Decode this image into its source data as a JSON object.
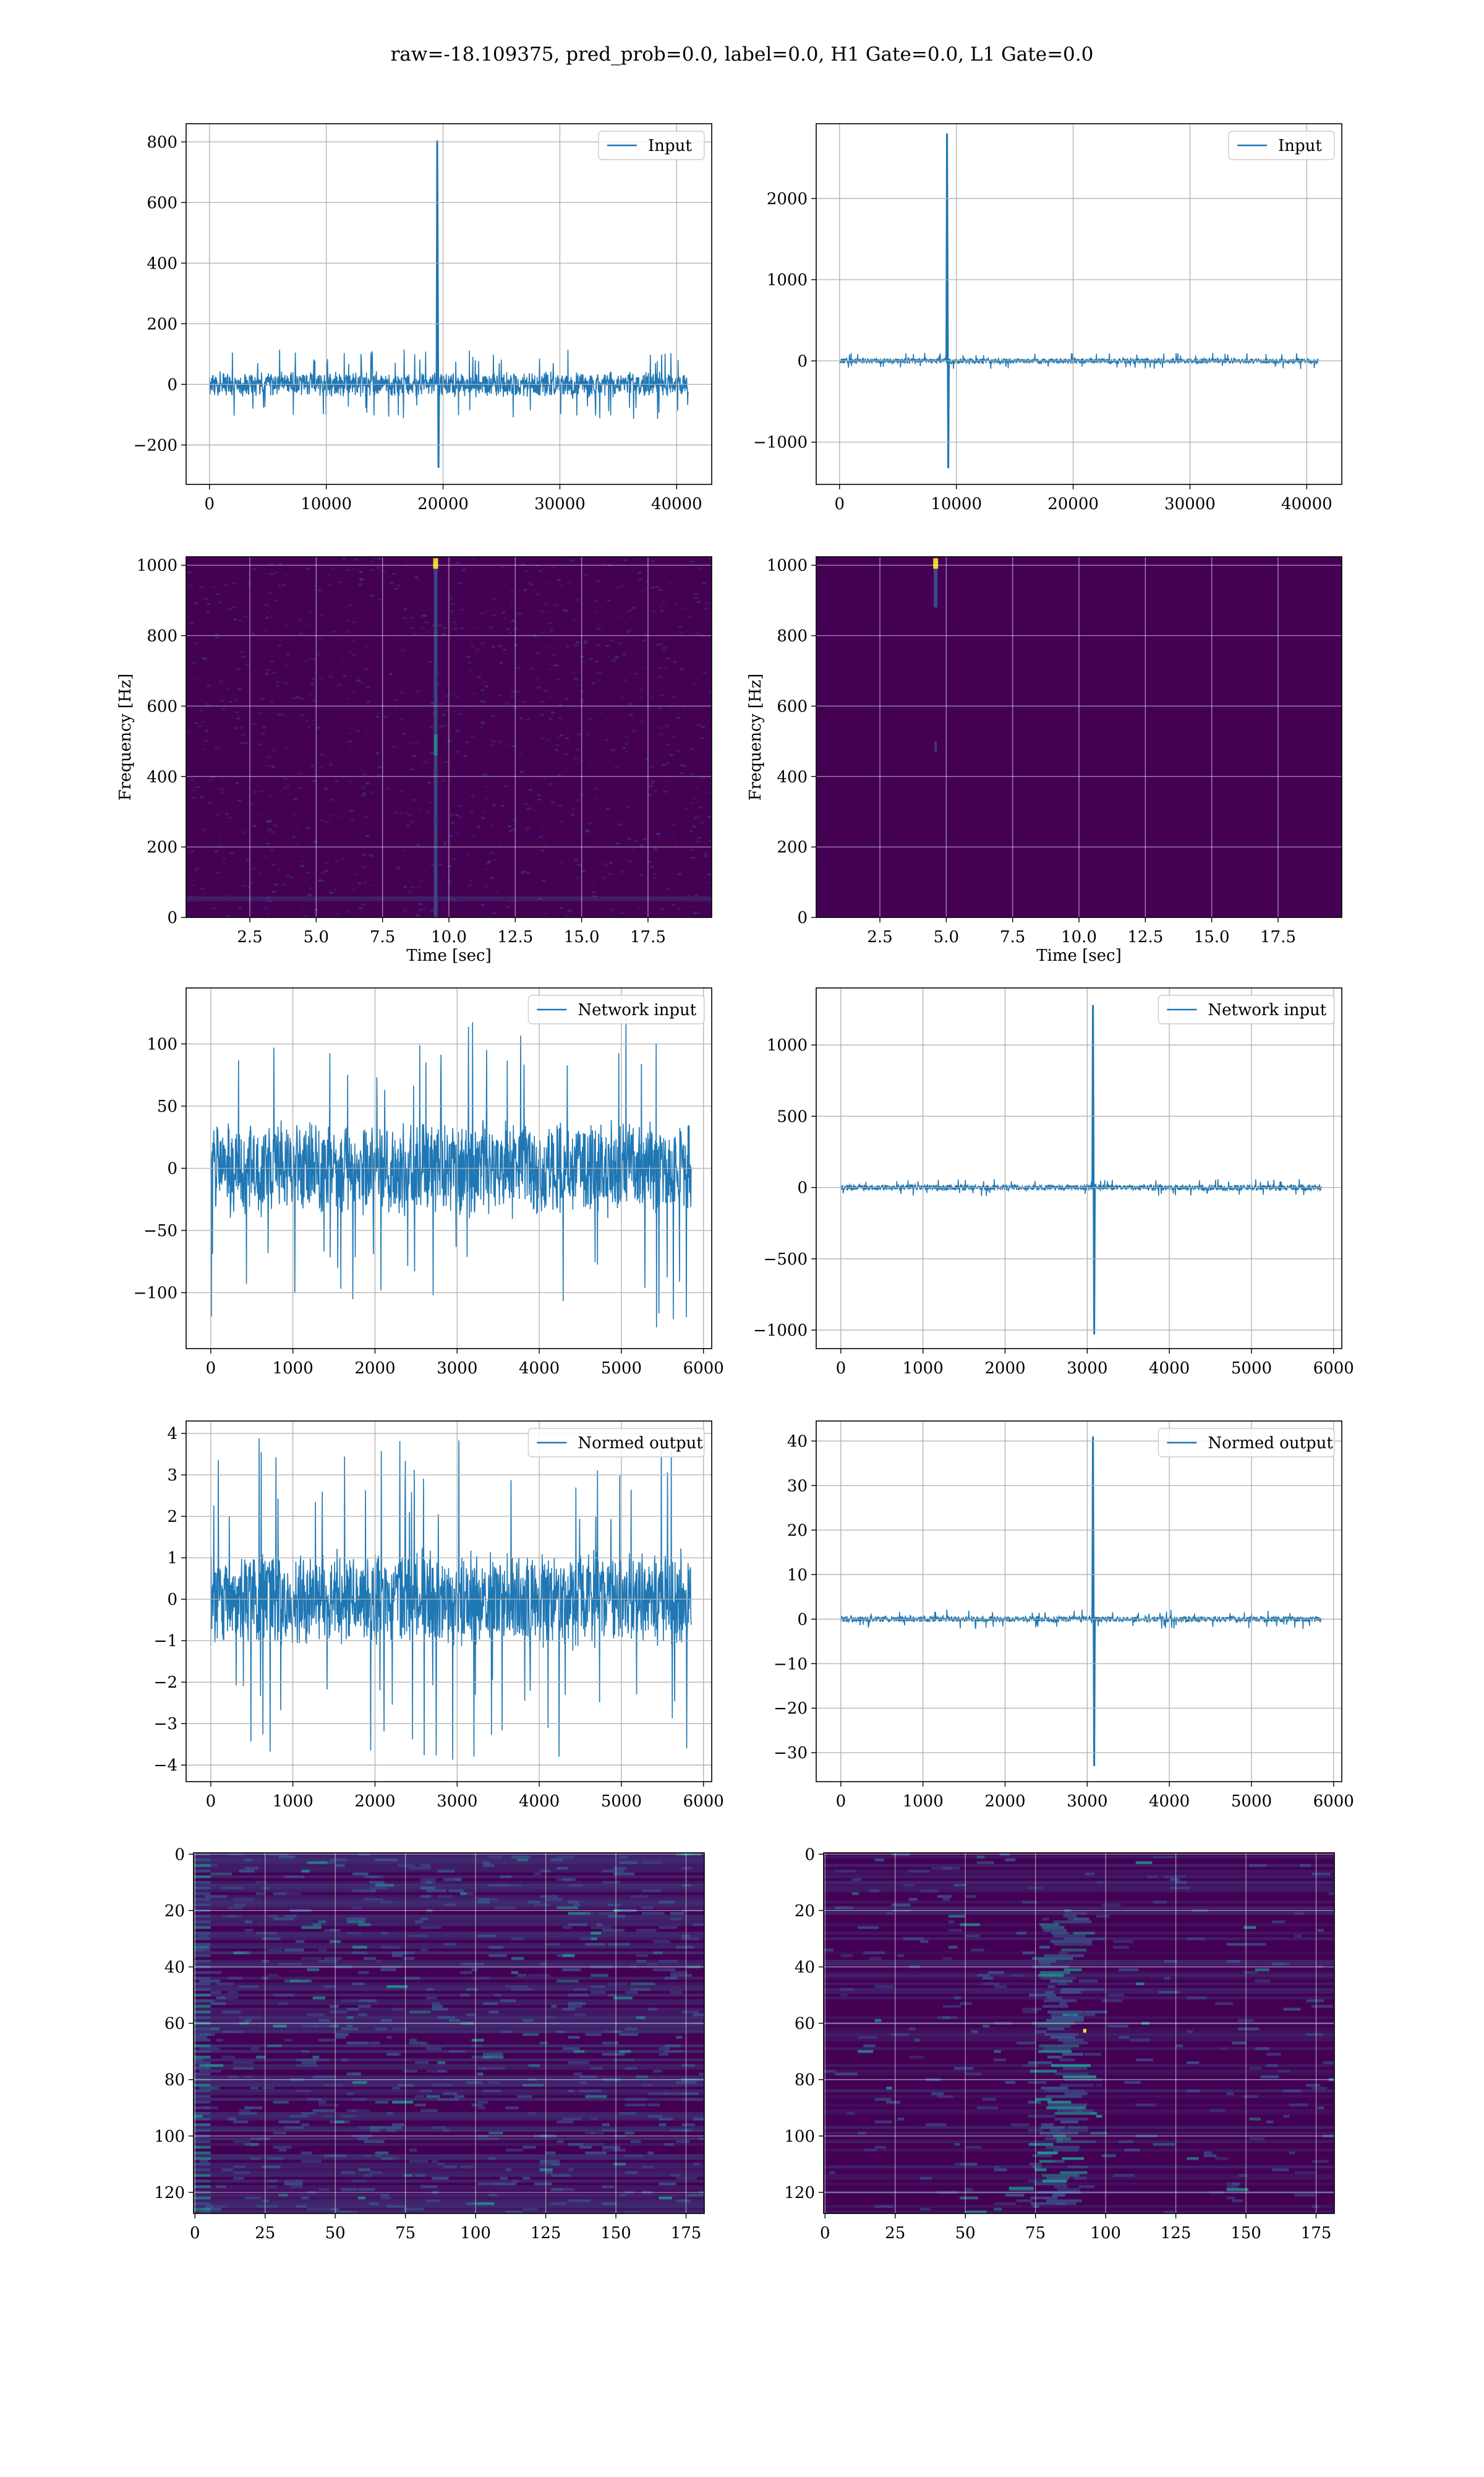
{
  "figure": {
    "suptitle": "raw=-18.109375, pred_prob=0.0, label=0.0, H1 Gate=0.0, L1 Gate=0.0"
  },
  "colors": {
    "line": "#1f77b4",
    "grid": "#b0b0b0",
    "viridis_bg": "#440154",
    "viridis_mid": "#3b528b",
    "viridis_hi": "#21918c",
    "viridis_peak": "#fde725"
  },
  "chart_data": [
    {
      "id": "left-input",
      "type": "line",
      "legend": "Input",
      "legend_loc": "top-right",
      "xlim": [
        -2000,
        43000
      ],
      "ylim": [
        -330,
        860
      ],
      "xticks": [
        0,
        10000,
        20000,
        30000,
        40000
      ],
      "xtick_labels": [
        "0",
        "10000",
        "20000",
        "30000",
        "40000"
      ],
      "yticks": [
        -200,
        0,
        200,
        400,
        600,
        800
      ],
      "ytick_labels": [
        "−200",
        "0",
        "200",
        "400",
        "600",
        "800"
      ],
      "xlabel": "",
      "ylabel": "",
      "signal": {
        "x_start": 0,
        "x_end": 41000,
        "noise_amp": 45,
        "noise_peak": 115,
        "offset": 0,
        "spikes": [
          {
            "x": 19500,
            "max": 805,
            "min": -275
          }
        ]
      },
      "grid": true
    },
    {
      "id": "right-input",
      "type": "line",
      "legend": "Input",
      "legend_loc": "top-right",
      "xlim": [
        -2000,
        43000
      ],
      "ylim": [
        -1520,
        2920
      ],
      "xticks": [
        0,
        10000,
        20000,
        30000,
        40000
      ],
      "xtick_labels": [
        "0",
        "10000",
        "20000",
        "30000",
        "40000"
      ],
      "yticks": [
        -1000,
        0,
        1000,
        2000
      ],
      "ytick_labels": [
        "−1000",
        "0",
        "1000",
        "2000"
      ],
      "xlabel": "",
      "ylabel": "",
      "signal": {
        "x_start": 0,
        "x_end": 41000,
        "noise_amp": 40,
        "noise_peak": 100,
        "offset": 0,
        "spikes": [
          {
            "x": 9200,
            "max": 2800,
            "min": -1320
          }
        ]
      },
      "grid": true
    },
    {
      "id": "left-spectrogram",
      "type": "heatmap",
      "xlim": [
        0.1,
        19.9
      ],
      "ylim": [
        0,
        1024
      ],
      "xticks": [
        2.5,
        5.0,
        7.5,
        10.0,
        12.5,
        15.0,
        17.5
      ],
      "xtick_labels": [
        "2.5",
        "5.0",
        "7.5",
        "10.0",
        "12.5",
        "15.0",
        "17.5"
      ],
      "yticks": [
        0,
        200,
        400,
        600,
        800,
        1000
      ],
      "ytick_labels": [
        "0",
        "200",
        "400",
        "600",
        "800",
        "1000"
      ],
      "xlabel": "Time [sec]",
      "ylabel": "Frequency [Hz]",
      "background": "noisy",
      "features": [
        {
          "x": 9.5,
          "kind": "vertical-line",
          "peak_y": 1010
        }
      ],
      "grid": true
    },
    {
      "id": "right-spectrogram",
      "type": "heatmap",
      "xlim": [
        0.1,
        19.9
      ],
      "ylim": [
        0,
        1024
      ],
      "xticks": [
        2.5,
        5.0,
        7.5,
        10.0,
        12.5,
        15.0,
        17.5
      ],
      "xtick_labels": [
        "2.5",
        "5.0",
        "7.5",
        "10.0",
        "12.5",
        "15.0",
        "17.5"
      ],
      "yticks": [
        0,
        200,
        400,
        600,
        800,
        1000
      ],
      "ytick_labels": [
        "0",
        "200",
        "400",
        "600",
        "800",
        "1000"
      ],
      "xlabel": "Time [sec]",
      "ylabel": "Frequency [Hz]",
      "background": "flat",
      "features": [
        {
          "x": 4.6,
          "kind": "short-line",
          "peak_y": 1010
        }
      ],
      "grid": true
    },
    {
      "id": "left-network-input",
      "type": "line",
      "legend": "Network input",
      "legend_loc": "top-right",
      "xlim": [
        -300,
        6100
      ],
      "ylim": [
        -145,
        145
      ],
      "xticks": [
        0,
        1000,
        2000,
        3000,
        4000,
        5000,
        6000
      ],
      "xtick_labels": [
        "0",
        "1000",
        "2000",
        "3000",
        "4000",
        "5000",
        "6000"
      ],
      "yticks": [
        -100,
        -50,
        0,
        50,
        100
      ],
      "ytick_labels": [
        "−100",
        "−50",
        "0",
        "50",
        "100"
      ],
      "xlabel": "",
      "ylabel": "",
      "signal": {
        "x_start": 0,
        "x_end": 5850,
        "noise_amp": 42,
        "noise_peak": 130,
        "offset": 0,
        "spikes": []
      },
      "grid": true
    },
    {
      "id": "right-network-input",
      "type": "line",
      "legend": "Network input",
      "legend_loc": "top-right",
      "xlim": [
        -300,
        6100
      ],
      "ylim": [
        -1130,
        1400
      ],
      "xticks": [
        0,
        1000,
        2000,
        3000,
        4000,
        5000,
        6000
      ],
      "xtick_labels": [
        "0",
        "1000",
        "2000",
        "3000",
        "4000",
        "5000",
        "6000"
      ],
      "yticks": [
        -1000,
        -500,
        0,
        500,
        1000
      ],
      "ytick_labels": [
        "−1000",
        "−500",
        "0",
        "500",
        "1000"
      ],
      "xlabel": "",
      "ylabel": "",
      "signal": {
        "x_start": 0,
        "x_end": 5850,
        "noise_amp": 25,
        "noise_peak": 60,
        "offset": 0,
        "spikes": [
          {
            "x": 3070,
            "max": 1280,
            "min": -1030
          }
        ]
      },
      "grid": true
    },
    {
      "id": "left-normed-output",
      "type": "line",
      "legend": "Normed output",
      "legend_loc": "top-right",
      "xlim": [
        -300,
        6100
      ],
      "ylim": [
        -4.4,
        4.3
      ],
      "xticks": [
        0,
        1000,
        2000,
        3000,
        4000,
        5000,
        6000
      ],
      "xtick_labels": [
        "0",
        "1000",
        "2000",
        "3000",
        "4000",
        "5000",
        "6000"
      ],
      "yticks": [
        -4,
        -3,
        -2,
        -1,
        0,
        1,
        2,
        3,
        4
      ],
      "ytick_labels": [
        "−4",
        "−3",
        "−2",
        "−1",
        "0",
        "1",
        "2",
        "3",
        "4"
      ],
      "xlabel": "",
      "ylabel": "",
      "signal": {
        "x_start": 0,
        "x_end": 5850,
        "noise_amp": 1.25,
        "noise_peak": 3.9,
        "offset": 0,
        "spikes": []
      },
      "grid": true
    },
    {
      "id": "right-normed-output",
      "type": "line",
      "legend": "Normed output",
      "legend_loc": "top-right",
      "xlim": [
        -300,
        6100
      ],
      "ylim": [
        -36.5,
        44.5
      ],
      "xticks": [
        0,
        1000,
        2000,
        3000,
        4000,
        5000,
        6000
      ],
      "xtick_labels": [
        "0",
        "1000",
        "2000",
        "3000",
        "4000",
        "5000",
        "6000"
      ],
      "yticks": [
        -30,
        -20,
        -10,
        0,
        10,
        20,
        30,
        40
      ],
      "ytick_labels": [
        "−30",
        "−20",
        "−10",
        "0",
        "10",
        "20",
        "30",
        "40"
      ],
      "xlabel": "",
      "ylabel": "",
      "signal": {
        "x_start": 0,
        "x_end": 5850,
        "noise_amp": 0.8,
        "noise_peak": 2.2,
        "offset": 0,
        "spikes": [
          {
            "x": 3070,
            "max": 41,
            "min": -33
          }
        ]
      },
      "grid": true
    },
    {
      "id": "left-feature-map",
      "type": "heatmap",
      "xlim": [
        -0.5,
        181.5
      ],
      "ylim": [
        127.5,
        -0.5
      ],
      "y_inverted": true,
      "xticks": [
        0,
        25,
        50,
        75,
        100,
        125,
        150,
        175
      ],
      "xtick_labels": [
        "0",
        "25",
        "50",
        "75",
        "100",
        "125",
        "150",
        "175"
      ],
      "yticks": [
        0,
        20,
        40,
        60,
        80,
        100,
        120
      ],
      "ytick_labels": [
        "0",
        "20",
        "40",
        "60",
        "80",
        "100",
        "120"
      ],
      "xlabel": "",
      "ylabel": "",
      "background": "striped-active",
      "features": [],
      "grid": true
    },
    {
      "id": "right-feature-map",
      "type": "heatmap",
      "xlim": [
        -0.5,
        181.5
      ],
      "ylim": [
        127.5,
        -0.5
      ],
      "y_inverted": true,
      "xticks": [
        0,
        25,
        50,
        75,
        100,
        125,
        150,
        175
      ],
      "xtick_labels": [
        "0",
        "25",
        "50",
        "75",
        "100",
        "125",
        "150",
        "175"
      ],
      "yticks": [
        0,
        20,
        40,
        60,
        80,
        100,
        120
      ],
      "ytick_labels": [
        "0",
        "20",
        "40",
        "60",
        "80",
        "100",
        "120"
      ],
      "xlabel": "",
      "ylabel": "",
      "background": "striped-quiet",
      "features": [
        {
          "x": 92,
          "kind": "activation-band"
        }
      ],
      "grid": true
    }
  ]
}
